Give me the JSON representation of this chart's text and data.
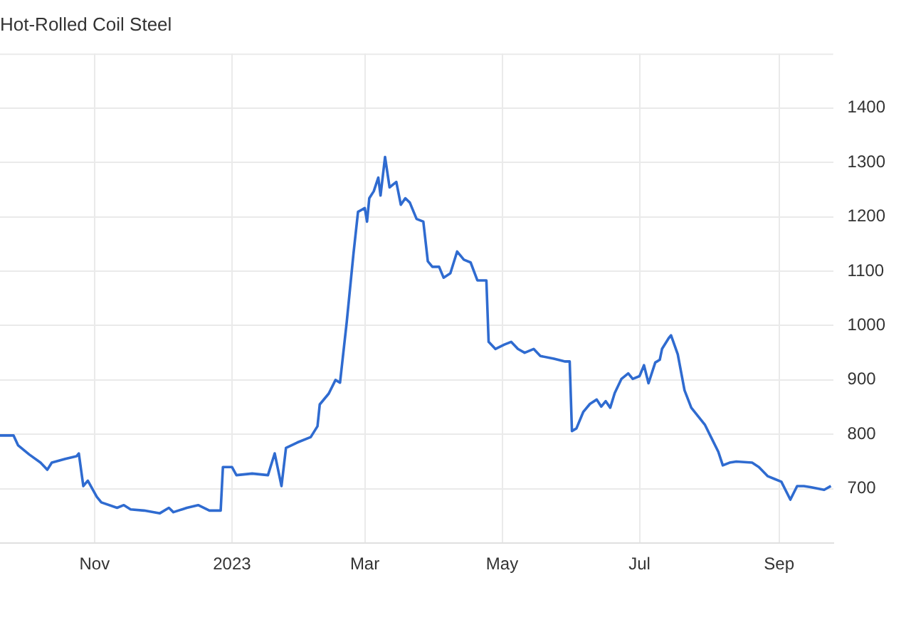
{
  "chart_data": {
    "type": "line",
    "title": "Hot-Rolled Coil Steel",
    "color": "#2f6bd0",
    "marker": "none",
    "grid": true,
    "legend": false,
    "xlim": [
      "2022-09-20",
      "2023-09-25"
    ],
    "xticks": [
      {
        "value": "2022-11-01",
        "label": "Nov"
      },
      {
        "value": "2023-01-01",
        "label": "2023"
      },
      {
        "value": "2023-03-01",
        "label": "Mar"
      },
      {
        "value": "2023-05-01",
        "label": "May"
      },
      {
        "value": "2023-07-01",
        "label": "Jul"
      },
      {
        "value": "2023-09-01",
        "label": "Sep"
      }
    ],
    "ylim": [
      600,
      1500
    ],
    "yticks": [
      700,
      800,
      900,
      1000,
      1100,
      1200,
      1300,
      1400
    ],
    "x": [
      "2022-09-20",
      "2022-09-26",
      "2022-09-28",
      "2022-10-03",
      "2022-10-08",
      "2022-10-11",
      "2022-10-13",
      "2022-10-19",
      "2022-10-24",
      "2022-10-25",
      "2022-10-27",
      "2022-10-29",
      "2022-11-02",
      "2022-11-04",
      "2022-11-11",
      "2022-11-14",
      "2022-11-17",
      "2022-11-23",
      "2022-11-30",
      "2022-12-04",
      "2022-12-06",
      "2022-12-12",
      "2022-12-17",
      "2022-12-22",
      "2022-12-27",
      "2022-12-28",
      "2023-01-01",
      "2023-01-03",
      "2023-01-10",
      "2023-01-17",
      "2023-01-20",
      "2023-01-23",
      "2023-01-25",
      "2023-01-30",
      "2023-02-05",
      "2023-02-08",
      "2023-02-09",
      "2023-02-13",
      "2023-02-16",
      "2023-02-18",
      "2023-02-21",
      "2023-02-24",
      "2023-02-26",
      "2023-03-01",
      "2023-03-02",
      "2023-03-03",
      "2023-03-05",
      "2023-03-07",
      "2023-03-08",
      "2023-03-10",
      "2023-03-12",
      "2023-03-15",
      "2023-03-17",
      "2023-03-19",
      "2023-03-21",
      "2023-03-24",
      "2023-03-27",
      "2023-03-29",
      "2023-03-31",
      "2023-04-03",
      "2023-04-05",
      "2023-04-08",
      "2023-04-11",
      "2023-04-14",
      "2023-04-17",
      "2023-04-20",
      "2023-04-24",
      "2023-04-25",
      "2023-04-28",
      "2023-05-02",
      "2023-05-05",
      "2023-05-08",
      "2023-05-11",
      "2023-05-15",
      "2023-05-18",
      "2023-05-24",
      "2023-05-29",
      "2023-05-31",
      "2023-06-01",
      "2023-06-03",
      "2023-06-06",
      "2023-06-09",
      "2023-06-12",
      "2023-06-14",
      "2023-06-16",
      "2023-06-18",
      "2023-06-20",
      "2023-06-23",
      "2023-06-26",
      "2023-06-28",
      "2023-07-01",
      "2023-07-03",
      "2023-07-05",
      "2023-07-08",
      "2023-07-10",
      "2023-07-11",
      "2023-07-14",
      "2023-07-15",
      "2023-07-18",
      "2023-07-21",
      "2023-07-24",
      "2023-07-30",
      "2023-08-02",
      "2023-08-05",
      "2023-08-07",
      "2023-08-10",
      "2023-08-13",
      "2023-08-20",
      "2023-08-23",
      "2023-08-27",
      "2023-08-30",
      "2023-09-02",
      "2023-09-06",
      "2023-09-09",
      "2023-09-12",
      "2023-09-15",
      "2023-09-21",
      "2023-09-24"
    ],
    "values": [
      798,
      798,
      780,
      763,
      748,
      735,
      748,
      755,
      760,
      765,
      705,
      715,
      685,
      675,
      665,
      670,
      662,
      660,
      655,
      665,
      657,
      665,
      670,
      660,
      660,
      740,
      740,
      725,
      728,
      725,
      765,
      705,
      775,
      785,
      795,
      815,
      855,
      875,
      900,
      895,
      1007,
      1133,
      1209,
      1216,
      1191,
      1234,
      1247,
      1272,
      1239,
      1310,
      1254,
      1264,
      1222,
      1234,
      1226,
      1196,
      1191,
      1118,
      1108,
      1108,
      1088,
      1096,
      1136,
      1121,
      1116,
      1083,
      1083,
      970,
      957,
      965,
      970,
      957,
      950,
      957,
      944,
      939,
      934,
      934,
      806,
      811,
      841,
      856,
      864,
      851,
      861,
      849,
      876,
      902,
      912,
      902,
      907,
      927,
      894,
      932,
      937,
      957,
      977,
      982,
      947,
      881,
      849,
      818,
      793,
      768,
      743,
      748,
      750,
      748,
      740,
      723,
      718,
      713,
      680,
      705,
      705,
      703,
      698,
      705
    ]
  }
}
